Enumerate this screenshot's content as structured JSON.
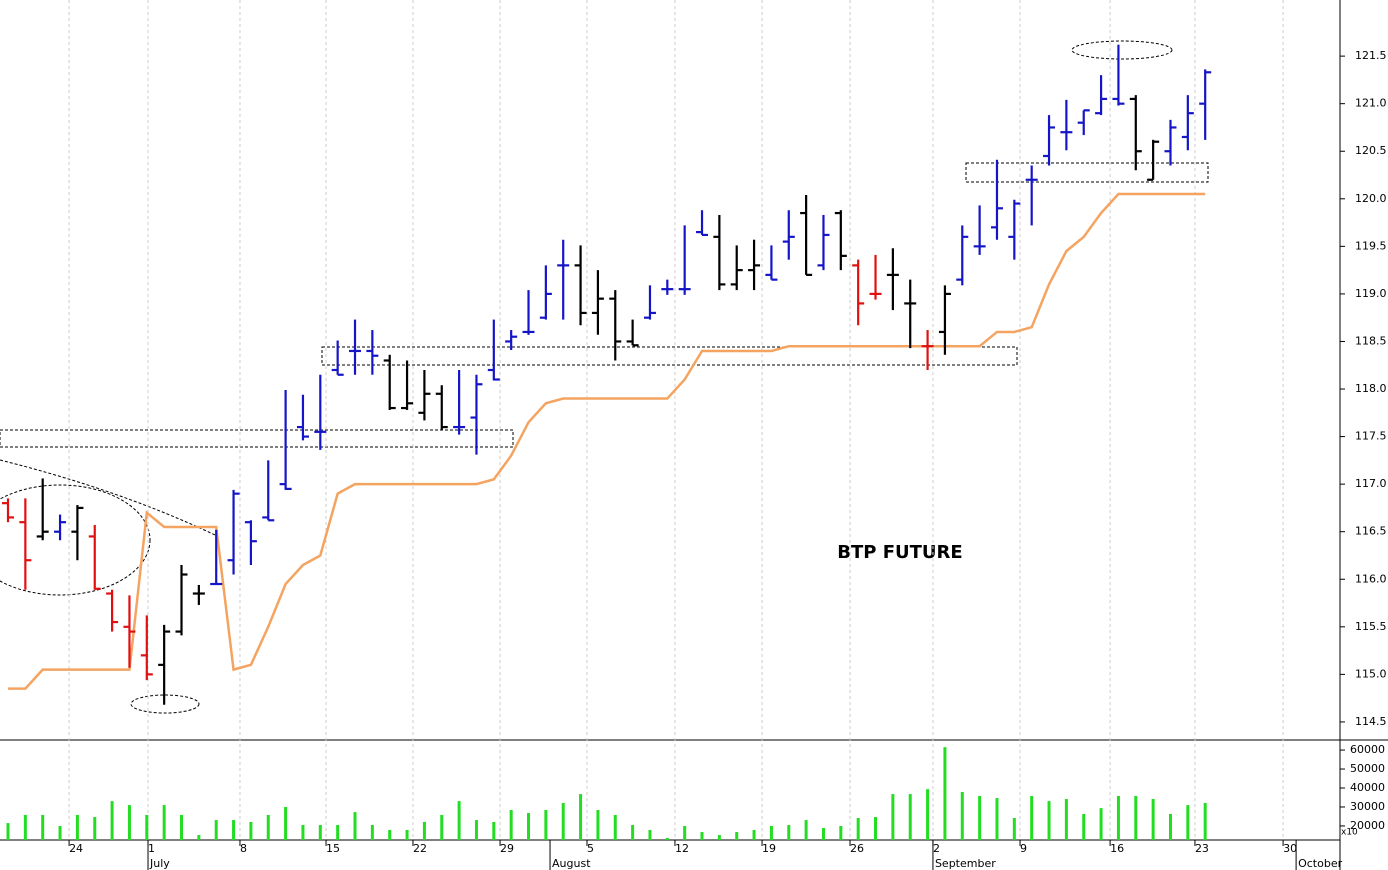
{
  "chart_data": {
    "type": "ohlc",
    "title": "BTP FUTURE",
    "xlim": [
      -0.461,
      76.77
    ],
    "xticks": [
      {
        "value": 3.52,
        "label": "24"
      },
      {
        "value": 8.07,
        "label": "1"
      },
      {
        "value": 13.37,
        "label": "8"
      },
      {
        "value": 18.33,
        "label": "15"
      },
      {
        "value": 23.34,
        "label": "22"
      },
      {
        "value": 28.36,
        "label": "29"
      },
      {
        "value": 33.37,
        "label": "5"
      },
      {
        "value": 38.44,
        "label": "12"
      },
      {
        "value": 43.46,
        "label": "19"
      },
      {
        "value": 48.53,
        "label": "26"
      },
      {
        "value": 53.31,
        "label": "2"
      },
      {
        "value": 58.33,
        "label": "9"
      },
      {
        "value": 63.52,
        "label": "16"
      },
      {
        "value": 68.41,
        "label": "23"
      },
      {
        "value": 73.49,
        "label": "30"
      }
    ],
    "month_ticks": [
      {
        "value": 8.07,
        "label": "July"
      },
      {
        "value": 31.24,
        "label": "August"
      },
      {
        "value": 53.31,
        "label": "September"
      },
      {
        "value": 74.24,
        "label": "October"
      }
    ],
    "ylim": [
      114.31,
      122.09
    ],
    "yticks": [
      114.5,
      {
        "value": 115,
        "label": "115.0"
      },
      115.5,
      {
        "value": 116,
        "label": "116.0"
      },
      116.5,
      {
        "value": 117,
        "label": "117.0"
      },
      117.5,
      {
        "value": 118,
        "label": "118.0"
      },
      118.5,
      {
        "value": 119,
        "label": "119.0"
      },
      119.5,
      {
        "value": 120,
        "label": "120.0"
      },
      120.5,
      {
        "value": 121,
        "label": "121.0"
      },
      121.5
    ],
    "grid": true,
    "ohlc": {
      "open": [
        116.8,
        116.6,
        116.45,
        116.5,
        116.5,
        116.45,
        115.85,
        115.5,
        115.2,
        115.1,
        115.45,
        115.85,
        115.95,
        116.2,
        116.6,
        116.65,
        117.0,
        117.6,
        117.55,
        118.2,
        118.4,
        118.4,
        118.3,
        117.8,
        117.75,
        117.95,
        117.6,
        117.7,
        118.2,
        118.5,
        118.6,
        118.75,
        119.3,
        119.3,
        118.8,
        118.95,
        118.5,
        118.75,
        119.05,
        119.05,
        119.65,
        119.6,
        119.1,
        119.25,
        119.2,
        119.55,
        119.85,
        119.3,
        119.85,
        119.3,
        119.0,
        119.2,
        118.9,
        118.45,
        118.6,
        119.15,
        119.5,
        119.7,
        119.6,
        120.2,
        120.45,
        120.7,
        120.8,
        120.9,
        121.05,
        121.05,
        120.2,
        120.5,
        120.65,
        121.0
      ],
      "high": [
        116.85,
        116.85,
        117.06,
        116.68,
        116.78,
        116.57,
        115.89,
        115.83,
        115.62,
        115.52,
        116.15,
        115.94,
        116.52,
        116.94,
        116.62,
        117.25,
        117.99,
        117.94,
        118.15,
        118.51,
        118.73,
        118.62,
        118.36,
        118.3,
        118.2,
        118.04,
        118.2,
        118.15,
        118.73,
        118.62,
        119.04,
        119.3,
        119.57,
        119.51,
        119.25,
        119.04,
        118.73,
        119.09,
        119.15,
        119.72,
        119.88,
        119.83,
        119.51,
        119.57,
        119.51,
        119.88,
        120.04,
        119.83,
        119.88,
        119.36,
        119.41,
        119.48,
        119.15,
        118.62,
        119.09,
        119.72,
        119.93,
        120.41,
        119.99,
        120.35,
        120.88,
        121.04,
        120.93,
        121.3,
        121.62,
        121.09,
        120.62,
        120.83,
        121.09,
        121.36
      ],
      "low": [
        116.6,
        115.89,
        116.41,
        116.41,
        116.2,
        115.89,
        115.45,
        115.07,
        114.94,
        114.68,
        115.41,
        115.73,
        115.94,
        116.05,
        116.15,
        116.62,
        116.94,
        117.46,
        117.36,
        118.15,
        118.15,
        118.15,
        117.78,
        117.78,
        117.67,
        117.57,
        117.52,
        117.31,
        118.09,
        118.41,
        118.57,
        118.73,
        118.73,
        118.67,
        118.57,
        118.3,
        118.46,
        118.73,
        118.99,
        118.99,
        119.62,
        119.04,
        119.04,
        119.04,
        119.15,
        119.36,
        119.2,
        119.25,
        119.25,
        118.67,
        118.94,
        118.83,
        118.43,
        118.2,
        118.36,
        119.09,
        119.41,
        119.57,
        119.36,
        119.72,
        120.35,
        120.51,
        120.67,
        120.88,
        120.98,
        120.3,
        120.2,
        120.35,
        120.51,
        120.62
      ],
      "close": [
        116.65,
        116.2,
        116.5,
        116.6,
        116.75,
        115.9,
        115.55,
        115.45,
        115.0,
        115.45,
        116.05,
        115.85,
        115.95,
        116.9,
        116.4,
        116.62,
        116.95,
        117.5,
        117.55,
        118.15,
        118.4,
        118.35,
        117.8,
        117.85,
        117.95,
        117.6,
        117.6,
        118.05,
        118.1,
        118.55,
        118.6,
        119.0,
        119.3,
        118.8,
        118.95,
        118.5,
        118.46,
        118.8,
        119.05,
        119.05,
        119.62,
        119.1,
        119.25,
        119.3,
        119.15,
        119.6,
        119.2,
        119.62,
        119.4,
        118.9,
        119.0,
        119.2,
        118.9,
        118.45,
        119.0,
        119.6,
        119.5,
        119.9,
        119.95,
        120.2,
        120.75,
        120.7,
        120.93,
        121.05,
        121.0,
        120.5,
        120.6,
        120.75,
        120.9,
        121.33
      ],
      "colors": [
        "#e01010",
        "#e01010",
        "#000000",
        "#1515c8",
        "#000000",
        "#e01010",
        "#e01010",
        "#e01010",
        "#e01010",
        "#000000",
        "#000000",
        "#000000",
        "#1515c8",
        "#1515c8",
        "#1515c8",
        "#1515c8",
        "#1515c8",
        "#1515c8",
        "#1515c8",
        "#1515c8",
        "#1515c8",
        "#1515c8",
        "#000000",
        "#000000",
        "#000000",
        "#000000",
        "#1515c8",
        "#1515c8",
        "#1515c8",
        "#1515c8",
        "#1515c8",
        "#1515c8",
        "#1515c8",
        "#000000",
        "#000000",
        "#000000",
        "#000000",
        "#1515c8",
        "#1515c8",
        "#1515c8",
        "#1515c8",
        "#000000",
        "#000000",
        "#000000",
        "#1515c8",
        "#1515c8",
        "#000000",
        "#1515c8",
        "#000000",
        "#e01010",
        "#e01010",
        "#000000",
        "#000000",
        "#e01010",
        "#000000",
        "#1515c8",
        "#1515c8",
        "#1515c8",
        "#1515c8",
        "#1515c8",
        "#1515c8",
        "#1515c8",
        "#1515c8",
        "#1515c8",
        "#1515c8",
        "#000000",
        "#000000",
        "#1515c8",
        "#1515c8",
        "#1515c8"
      ]
    },
    "stop_line": {
      "color": "#f4a460",
      "values": [
        114.85,
        114.85,
        115.05,
        115.05,
        115.05,
        115.05,
        115.05,
        115.05,
        116.7,
        116.55,
        116.55,
        116.55,
        116.55,
        115.05,
        115.1,
        115.5,
        115.95,
        116.15,
        116.25,
        116.9,
        117.0,
        117.0,
        117.0,
        117.0,
        117.0,
        117.0,
        117.0,
        117.0,
        117.05,
        117.3,
        117.65,
        117.85,
        117.9,
        117.9,
        117.9,
        117.9,
        117.9,
        117.9,
        117.9,
        118.1,
        118.4,
        118.4,
        118.4,
        118.4,
        118.4,
        118.45,
        118.45,
        118.45,
        118.45,
        118.45,
        118.45,
        118.45,
        118.45,
        118.45,
        118.45,
        118.45,
        118.45,
        118.6,
        118.6,
        118.65,
        119.1,
        119.45,
        119.6,
        119.85,
        120.05,
        120.05,
        120.05,
        120.05,
        120.05,
        120.05
      ]
    },
    "volume": {
      "type": "bar",
      "color": "#22dd22",
      "unit_label": "x10",
      "ylim": [
        12600,
        65300
      ],
      "yticks": [
        20000,
        30000,
        40000,
        50000,
        60000
      ],
      "values": [
        21500,
        25800,
        25800,
        20000,
        25800,
        24700,
        33100,
        31000,
        25800,
        31000,
        25800,
        15200,
        23100,
        23100,
        22100,
        25800,
        30000,
        20500,
        20500,
        20500,
        27300,
        20500,
        17900,
        17900,
        22100,
        25800,
        33100,
        23100,
        22100,
        28400,
        26800,
        28400,
        32100,
        36800,
        28400,
        25800,
        20500,
        17900,
        13700,
        20000,
        16800,
        15200,
        16800,
        17900,
        20000,
        20500,
        23100,
        18900,
        20000,
        24200,
        24700,
        36800,
        36800,
        39400,
        61500,
        37900,
        35800,
        34700,
        24200,
        35800,
        33100,
        34200,
        26300,
        29400,
        35800,
        35800,
        34200,
        26300,
        31000,
        32100
      ]
    }
  }
}
